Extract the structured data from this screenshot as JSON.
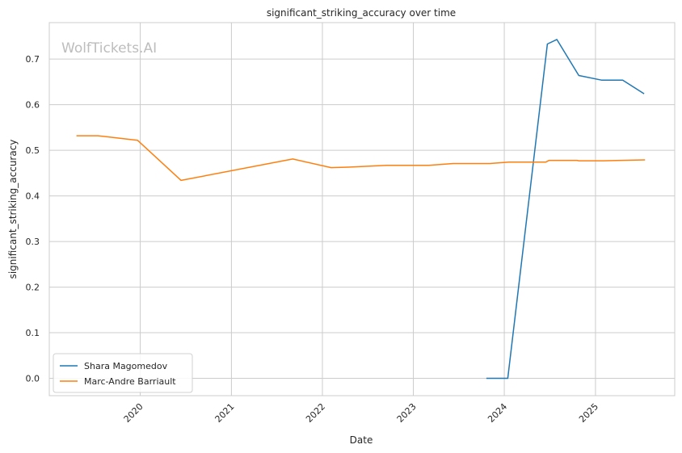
{
  "chart_data": {
    "type": "line",
    "title": "significant_striking_accuracy over time",
    "xlabel": "Date",
    "ylabel": "significant_striking_accuracy",
    "watermark": "WolfTickets.AI",
    "x_axis": {
      "type": "date",
      "ticks": [
        "2020-01-01",
        "2021-01-01",
        "2022-01-01",
        "2023-01-01",
        "2024-01-01",
        "2025-01-01"
      ],
      "tick_labels": [
        "2020",
        "2021",
        "2022",
        "2023",
        "2024",
        "2025"
      ],
      "range": [
        "2019-01-01",
        "2025-11-15"
      ]
    },
    "y_axis": {
      "ticks": [
        0.0,
        0.1,
        0.2,
        0.3,
        0.4,
        0.5,
        0.6,
        0.7
      ],
      "tick_labels": [
        "0.0",
        "0.1",
        "0.2",
        "0.3",
        "0.4",
        "0.5",
        "0.6",
        "0.7"
      ],
      "range": [
        -0.038,
        0.78
      ]
    },
    "grid": true,
    "legend_position": "lower-left",
    "series": [
      {
        "name": "Shara Magomedov",
        "color": "#1f77b4",
        "points": [
          {
            "x": "2023-10-21",
            "y": 0.0
          },
          {
            "x": "2024-01-15",
            "y": 0.0
          },
          {
            "x": "2024-06-22",
            "y": 0.733
          },
          {
            "x": "2024-07-30",
            "y": 0.743
          },
          {
            "x": "2024-10-26",
            "y": 0.664
          },
          {
            "x": "2025-01-25",
            "y": 0.654
          },
          {
            "x": "2025-04-20",
            "y": 0.654
          },
          {
            "x": "2025-07-15",
            "y": 0.624
          }
        ]
      },
      {
        "name": "Marc-Andre Barriault",
        "color": "#ff7f0e",
        "points": [
          {
            "x": "2019-04-20",
            "y": 0.532
          },
          {
            "x": "2019-07-15",
            "y": 0.532
          },
          {
            "x": "2019-12-21",
            "y": 0.522
          },
          {
            "x": "2020-06-13",
            "y": 0.434
          },
          {
            "x": "2021-09-04",
            "y": 0.481
          },
          {
            "x": "2022-02-05",
            "y": 0.462
          },
          {
            "x": "2022-04-15",
            "y": 0.463
          },
          {
            "x": "2022-09-17",
            "y": 0.467
          },
          {
            "x": "2023-03-04",
            "y": 0.467
          },
          {
            "x": "2023-06-10",
            "y": 0.471
          },
          {
            "x": "2023-11-04",
            "y": 0.471
          },
          {
            "x": "2024-01-20",
            "y": 0.474
          },
          {
            "x": "2024-06-15",
            "y": 0.474
          },
          {
            "x": "2024-06-29",
            "y": 0.478
          },
          {
            "x": "2024-10-19",
            "y": 0.478
          },
          {
            "x": "2024-10-26",
            "y": 0.477
          },
          {
            "x": "2025-02-01",
            "y": 0.477
          },
          {
            "x": "2025-07-19",
            "y": 0.479
          }
        ]
      }
    ]
  }
}
